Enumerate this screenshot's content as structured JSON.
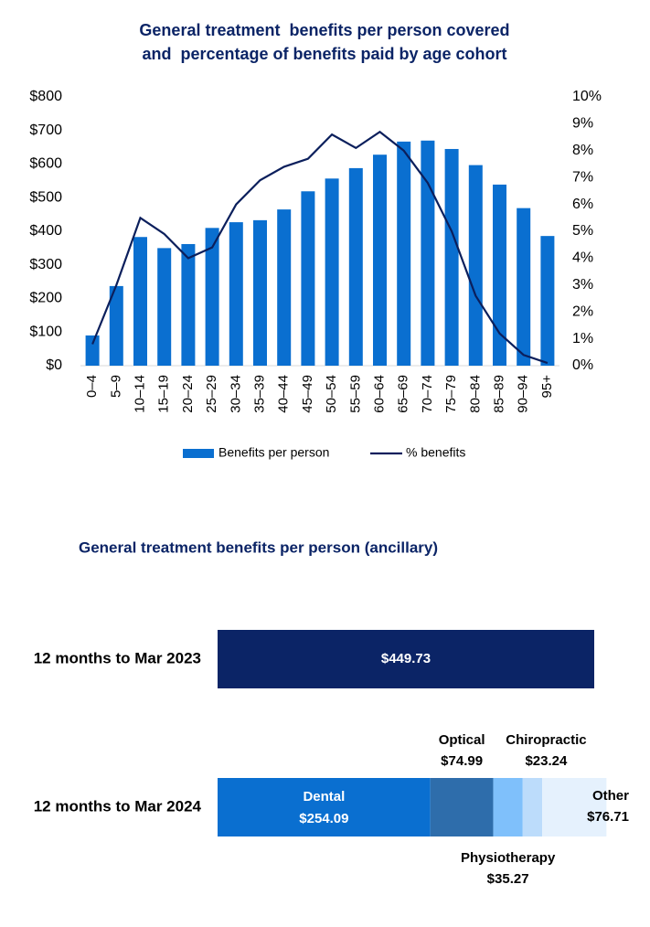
{
  "chart_data": [
    {
      "type": "bar_line",
      "title": [
        "General treatment  benefits per person covered",
        "and  percentage of benefits paid by age cohort"
      ],
      "categories": [
        "0–4",
        "5–9",
        "10–14",
        "15–19",
        "20–24",
        "25–29",
        "30–34",
        "35–39",
        "40–44",
        "45–49",
        "50–54",
        "55–59",
        "60–64",
        "65–69",
        "70–74",
        "75–79",
        "80–84",
        "85–89",
        "90–94",
        "95+"
      ],
      "series": [
        {
          "name": "Benefits per person",
          "type": "bar",
          "color": "#0a6fd0",
          "values": [
            90,
            237,
            383,
            350,
            362,
            410,
            427,
            433,
            465,
            519,
            557,
            588,
            628,
            667,
            670,
            645,
            597,
            539,
            469,
            386
          ]
        },
        {
          "name": "% benefits",
          "type": "line",
          "axis": "y2",
          "color": "#0b1f5c",
          "values": [
            0.8,
            3.0,
            5.5,
            4.9,
            4.0,
            4.4,
            6.0,
            6.9,
            7.4,
            7.7,
            8.6,
            8.1,
            8.7,
            8.0,
            6.8,
            5.0,
            2.6,
            1.2,
            0.4,
            0.1
          ]
        }
      ],
      "ylim": [
        0,
        800
      ],
      "yticks": [
        {
          "value": 0,
          "label": "$0"
        },
        {
          "value": 100,
          "label": "$100"
        },
        {
          "value": 200,
          "label": "$200"
        },
        {
          "value": 300,
          "label": "$300"
        },
        {
          "value": 400,
          "label": "$400"
        },
        {
          "value": 500,
          "label": "$500"
        },
        {
          "value": 600,
          "label": "$600"
        },
        {
          "value": 700,
          "label": "$700"
        },
        {
          "value": 800,
          "label": "$800"
        }
      ],
      "y2lim": [
        0,
        10
      ],
      "y2ticks": [
        {
          "value": 0,
          "label": "0%"
        },
        {
          "value": 1,
          "label": "1%"
        },
        {
          "value": 2,
          "label": "2%"
        },
        {
          "value": 3,
          "label": "3%"
        },
        {
          "value": 4,
          "label": "4%"
        },
        {
          "value": 5,
          "label": "5%"
        },
        {
          "value": 6,
          "label": "6%"
        },
        {
          "value": 7,
          "label": "7%"
        },
        {
          "value": 8,
          "label": "8%"
        },
        {
          "value": 9,
          "label": "9%"
        },
        {
          "value": 10,
          "label": "10%"
        }
      ],
      "legend": "bottom"
    },
    {
      "type": "stacked_hbar",
      "title": "General treatment benefits per person (ancillary)",
      "categories": [
        "12 months to Mar 2023",
        "12 months to Mar 2024"
      ],
      "series": [
        {
          "color": "#0b2466",
          "values": [
            449.73,
            null
          ],
          "value_labels": [
            "$449.73",
            null
          ]
        },
        {
          "name": "Dental",
          "color": "#0a6fd0",
          "values": [
            null,
            254.09
          ],
          "value_labels": [
            null,
            "$254.09"
          ]
        },
        {
          "name": "Optical",
          "color": "#2e6dab",
          "values": [
            null,
            74.99
          ],
          "value_labels": [
            null,
            "$74.99"
          ]
        },
        {
          "name": "Physiotherapy",
          "color": "#7fc0fb",
          "values": [
            null,
            35.27
          ],
          "value_labels": [
            null,
            "$35.27"
          ]
        },
        {
          "name": "Chiropractic",
          "color": "#bcdcfb",
          "values": [
            null,
            23.24
          ],
          "value_labels": [
            null,
            "$23.24"
          ]
        },
        {
          "name": "Other",
          "color": "#e5f1fd",
          "values": [
            null,
            76.71
          ],
          "value_labels": [
            null,
            "$76.71"
          ]
        }
      ]
    }
  ]
}
